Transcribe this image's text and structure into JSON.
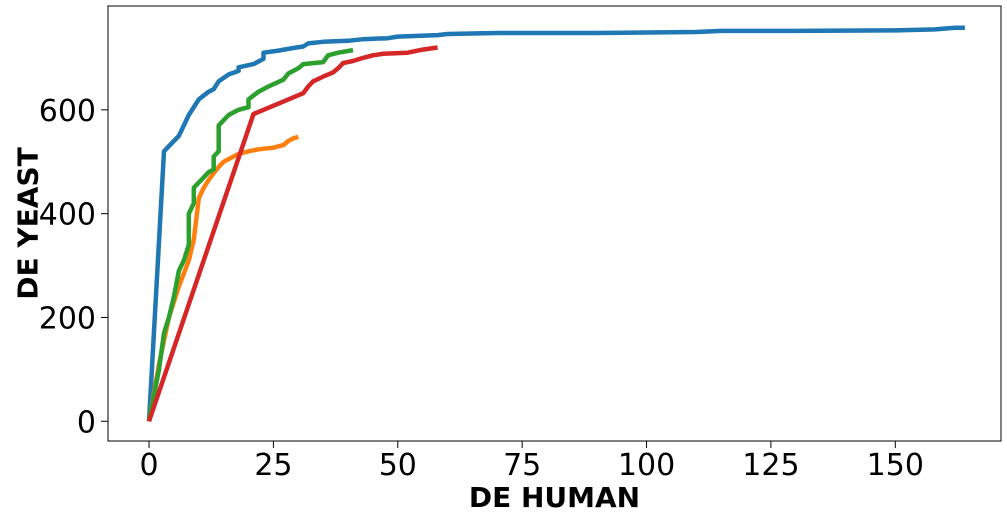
{
  "chart_data": {
    "type": "line",
    "title": "",
    "xlabel": "DE HUMAN",
    "ylabel": "DE YEAST",
    "xlim": [
      -8.25,
      171.25
    ],
    "ylim": [
      -38,
      800
    ],
    "xticks": [
      0,
      25,
      50,
      75,
      100,
      125,
      150
    ],
    "yticks": [
      0,
      200,
      400,
      600
    ],
    "grid": false,
    "legend": "none",
    "series": [
      {
        "color": "#1f77b4",
        "points": [
          [
            0,
            0
          ],
          [
            3,
            520
          ],
          [
            4,
            530
          ],
          [
            6,
            550
          ],
          [
            8,
            590
          ],
          [
            10,
            620
          ],
          [
            12,
            635
          ],
          [
            13,
            640
          ],
          [
            14,
            655
          ],
          [
            16,
            668
          ],
          [
            18,
            675
          ],
          [
            18,
            682
          ],
          [
            21,
            688
          ],
          [
            23,
            698
          ],
          [
            23,
            710
          ],
          [
            26,
            714
          ],
          [
            29,
            719
          ],
          [
            31,
            722
          ],
          [
            32,
            728
          ],
          [
            35,
            731
          ],
          [
            40,
            733
          ],
          [
            43,
            736
          ],
          [
            48,
            738
          ],
          [
            50,
            741
          ],
          [
            58,
            744
          ],
          [
            60,
            746
          ],
          [
            70,
            748
          ],
          [
            90,
            748
          ],
          [
            110,
            750
          ],
          [
            115,
            752
          ],
          [
            130,
            752
          ],
          [
            150,
            753
          ],
          [
            158,
            755
          ],
          [
            162,
            758
          ],
          [
            164,
            758
          ]
        ]
      },
      {
        "color": "#ff7f0e",
        "points": [
          [
            0,
            0
          ],
          [
            2,
            110
          ],
          [
            4,
            200
          ],
          [
            6,
            260
          ],
          [
            8,
            310
          ],
          [
            9,
            350
          ],
          [
            10,
            430
          ],
          [
            11,
            450
          ],
          [
            12,
            465
          ],
          [
            13,
            478
          ],
          [
            14,
            490
          ],
          [
            15,
            500
          ],
          [
            16,
            505
          ],
          [
            17,
            510
          ],
          [
            18,
            515
          ],
          [
            20,
            520
          ],
          [
            22,
            524
          ],
          [
            25,
            527
          ],
          [
            27,
            532
          ],
          [
            28,
            540
          ],
          [
            29,
            545
          ],
          [
            30,
            548
          ]
        ]
      },
      {
        "color": "#2ca02c",
        "points": [
          [
            0,
            0
          ],
          [
            2,
            100
          ],
          [
            3,
            170
          ],
          [
            4,
            200
          ],
          [
            5,
            240
          ],
          [
            6,
            290
          ],
          [
            7,
            310
          ],
          [
            8,
            340
          ],
          [
            8,
            400
          ],
          [
            9,
            420
          ],
          [
            9,
            450
          ],
          [
            10,
            460
          ],
          [
            11,
            470
          ],
          [
            12,
            480
          ],
          [
            13,
            485
          ],
          [
            13,
            510
          ],
          [
            14,
            520
          ],
          [
            14,
            570
          ],
          [
            15,
            580
          ],
          [
            16,
            590
          ],
          [
            18,
            600
          ],
          [
            20,
            605
          ],
          [
            20,
            620
          ],
          [
            22,
            635
          ],
          [
            24,
            645
          ],
          [
            27,
            658
          ],
          [
            28,
            670
          ],
          [
            30,
            680
          ],
          [
            31,
            688
          ],
          [
            35,
            692
          ],
          [
            36,
            705
          ],
          [
            38,
            710
          ],
          [
            41,
            715
          ]
        ]
      },
      {
        "color": "#d62728",
        "points": [
          [
            0,
            0
          ],
          [
            21,
            592
          ],
          [
            31,
            632
          ],
          [
            32,
            645
          ],
          [
            33,
            655
          ],
          [
            35,
            664
          ],
          [
            37,
            672
          ],
          [
            38,
            680
          ],
          [
            39,
            690
          ],
          [
            41,
            694
          ],
          [
            43,
            700
          ],
          [
            45,
            705
          ],
          [
            47,
            708
          ],
          [
            52,
            710
          ],
          [
            55,
            716
          ],
          [
            58,
            720
          ]
        ]
      }
    ]
  }
}
